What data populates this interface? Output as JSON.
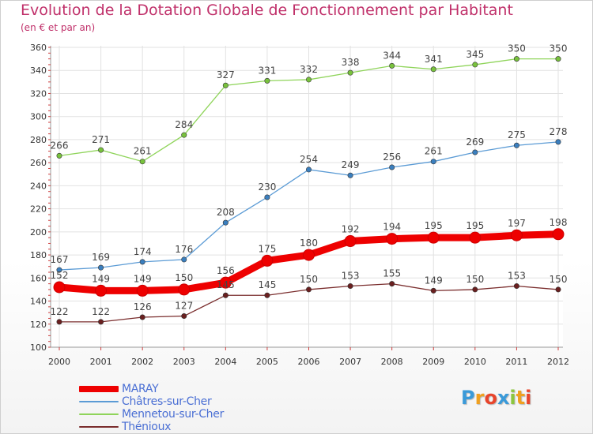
{
  "title": "Evolution de la Dotation Globale de Fonctionnement par Habitant",
  "subtitle": "(en € et par an)",
  "logo": {
    "text": "Proxiti",
    "letters": [
      {
        "ch": "P",
        "color": "#3a9ad9"
      },
      {
        "ch": "r",
        "color": "#f0a020"
      },
      {
        "ch": "o",
        "color": "#e8452c"
      },
      {
        "ch": "x",
        "color": "#3a9ad9"
      },
      {
        "ch": "i",
        "color": "#8cc63e"
      },
      {
        "ch": "t",
        "color": "#f0a020"
      },
      {
        "ch": "i",
        "color": "#e8452c"
      }
    ]
  },
  "chart_data": {
    "type": "line",
    "title": "Evolution de la Dotation Globale de Fonctionnement par Habitant",
    "subtitle": "(en € et par an)",
    "x": [
      "2000",
      "2001",
      "2002",
      "2003",
      "2004",
      "2005",
      "2006",
      "2007",
      "2008",
      "2009",
      "2010",
      "2011",
      "2012"
    ],
    "ylim": [
      100,
      360
    ],
    "yticks": [
      100,
      120,
      140,
      160,
      180,
      200,
      220,
      240,
      260,
      280,
      300,
      320,
      340,
      360
    ],
    "grid": true,
    "legend_position": "bottom-left",
    "series": [
      {
        "name": "MARAY",
        "color": "#ee0000",
        "thick": true,
        "label_color": "#4a4a4a",
        "values": [
          152,
          149,
          149,
          150,
          156,
          175,
          180,
          192,
          194,
          195,
          195,
          197,
          198
        ]
      },
      {
        "name": "Châtres-sur-Cher",
        "color": "#5b9bd5",
        "thick": false,
        "marker": "#3a7fbf",
        "values": [
          167,
          169,
          174,
          176,
          208,
          230,
          254,
          249,
          256,
          261,
          269,
          275,
          278
        ]
      },
      {
        "name": "Mennetou-sur-Cher",
        "color": "#8fd45a",
        "thick": false,
        "marker": "#78c23c",
        "values": [
          266,
          271,
          261,
          284,
          327,
          331,
          332,
          338,
          344,
          341,
          345,
          350,
          350
        ]
      },
      {
        "name": "Thénioux",
        "color": "#7a2d2d",
        "thick": false,
        "marker": "#6a1f1f",
        "values": [
          122,
          122,
          126,
          127,
          145,
          145,
          150,
          153,
          155,
          149,
          150,
          153,
          150
        ]
      }
    ]
  }
}
